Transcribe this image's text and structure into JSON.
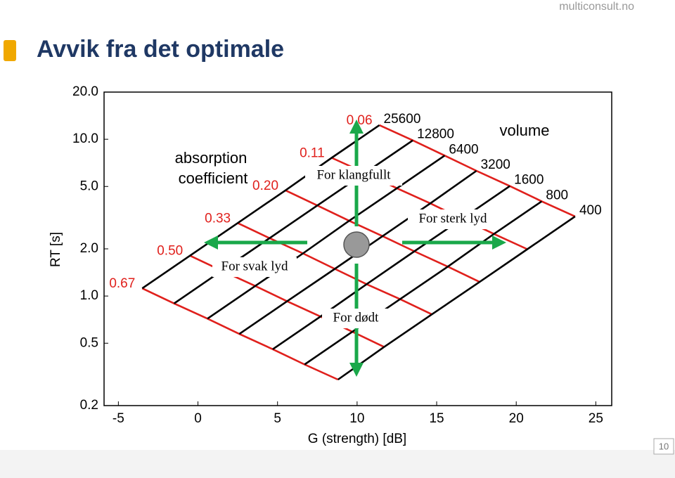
{
  "header": {
    "title": "Avvik fra det optimale",
    "brand": "multiconsult.no",
    "page_number": 10
  },
  "chart_data": {
    "type": "nomogram",
    "x_label": "G (strength) [dB]",
    "y_label": "RT [s]",
    "xlim": [
      -5.9,
      26
    ],
    "ylim": [
      0.2,
      20
    ],
    "log_y": true,
    "xticks": [
      -5,
      0,
      5,
      10,
      15,
      20,
      25
    ],
    "yticks": [
      0.2,
      0.5,
      {
        "value": 1,
        "label": "1.0"
      },
      {
        "value": 2,
        "label": "2.0"
      },
      {
        "value": 5,
        "label": "5.0"
      },
      {
        "value": 10,
        "label": "10.0"
      },
      {
        "value": 20,
        "label": "20.0"
      }
    ],
    "absorption_label": [
      "absorption",
      "coefficient"
    ],
    "volume_label": "volume",
    "absorption_color": "#e0201c",
    "volume_color": "#000000",
    "absorption_values": [
      0.06,
      0.11,
      {
        "value": 0.2,
        "label": "0.20"
      },
      0.33,
      {
        "value": 0.5,
        "label": "0.50"
      },
      0.67
    ],
    "volume_values": [
      25600,
      12800,
      6400,
      3200,
      1600,
      800,
      400
    ],
    "G": [
      [
        11.4,
        13.5,
        15.5,
        17.5,
        19.6,
        21.6,
        23.7
      ],
      [
        8.4,
        10.5,
        12.5,
        14.6,
        16.6,
        18.6,
        20.7
      ],
      [
        5.5,
        7.5,
        9.5,
        11.6,
        13.6,
        15.7,
        17.7
      ],
      [
        2.5,
        4.5,
        6.6,
        8.6,
        10.6,
        12.7,
        14.7
      ],
      [
        -0.5,
        1.5,
        3.6,
        5.6,
        7.7,
        9.7,
        11.7
      ],
      [
        -3.5,
        -1.5,
        0.6,
        2.6,
        4.7,
        6.7,
        8.8
      ]
    ],
    "RT": [
      [
        12.3,
        9.84,
        7.87,
        6.29,
        5.03,
        4.02,
        3.22
      ],
      [
        7.62,
        6.1,
        4.87,
        3.9,
        3.11,
        2.49,
        1.99
      ],
      [
        4.72,
        3.78,
        3.02,
        2.41,
        1.93,
        1.54,
        1.23
      ],
      [
        2.92,
        2.34,
        1.87,
        1.49,
        1.19,
        0.955,
        0.764
      ],
      [
        1.81,
        1.45,
        1.16,
        0.926,
        0.74,
        0.592,
        0.473
      ],
      [
        1.12,
        0.897,
        0.717,
        0.573,
        0.458,
        0.366,
        0.293
      ]
    ],
    "annotations": [
      "For klangfullt",
      "For sterk lyd",
      "For svak lyd",
      "For dødt"
    ]
  }
}
